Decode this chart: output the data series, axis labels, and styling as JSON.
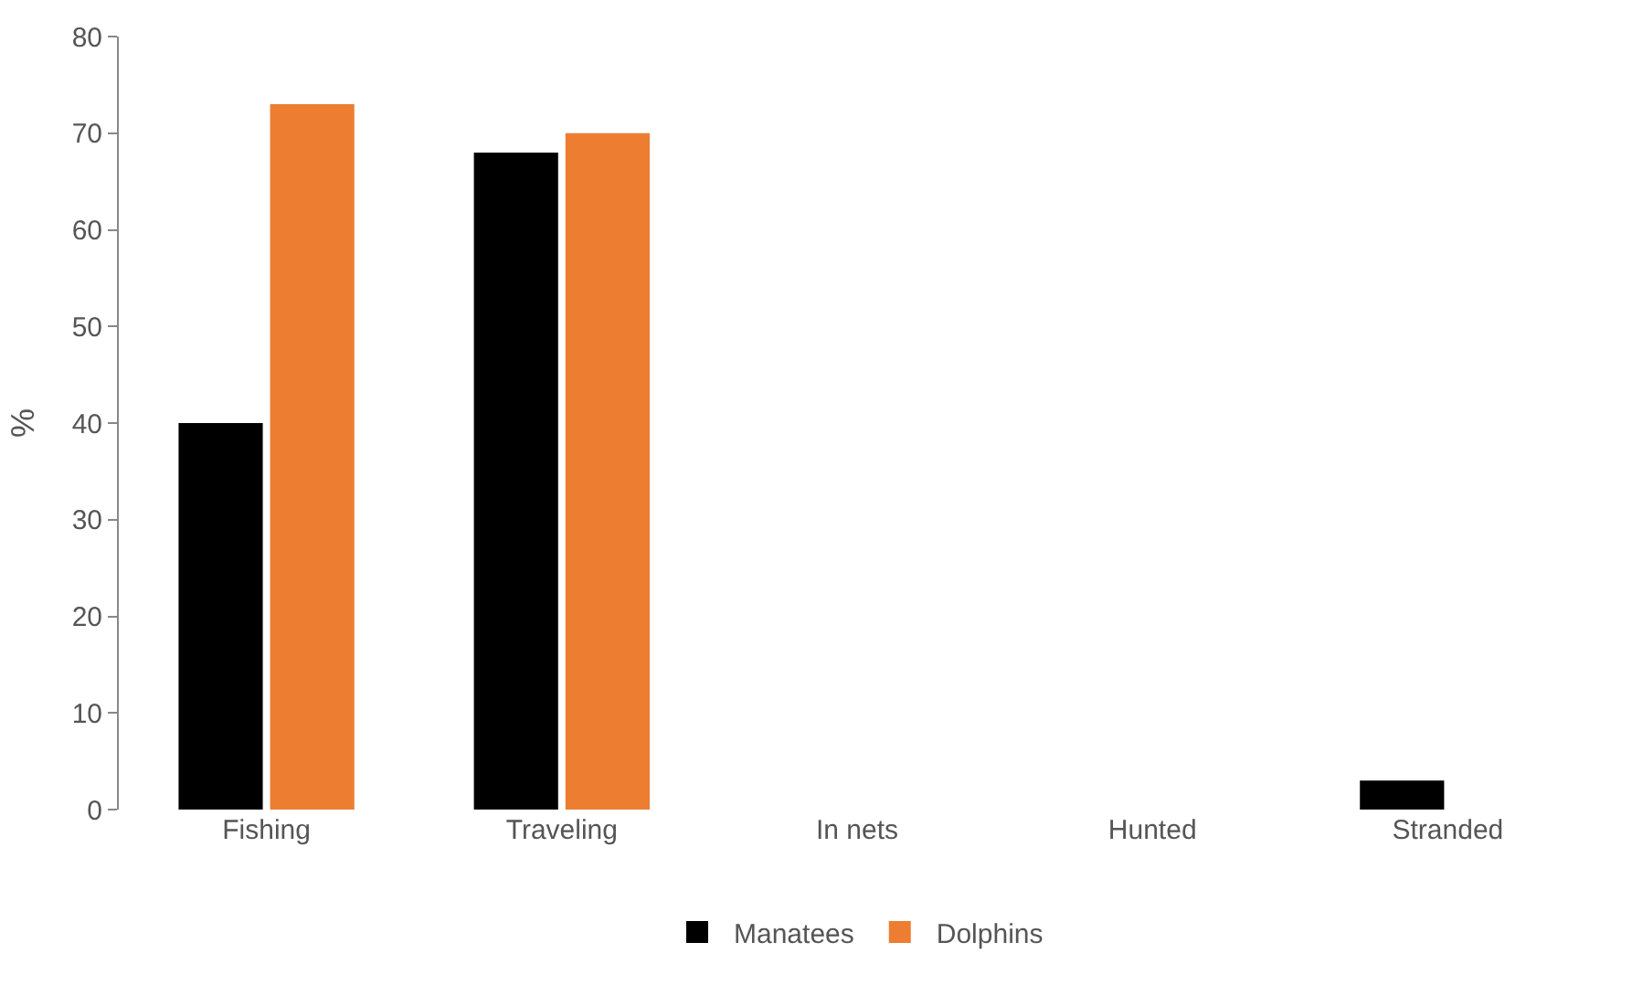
{
  "chart_data": {
    "type": "bar",
    "ylabel": "%",
    "categories": [
      "Fishing",
      "Traveling",
      "In nets",
      "Hunted",
      "Stranded"
    ],
    "series": [
      {
        "name": "Manatees",
        "color": "#000000",
        "values": [
          40,
          68,
          0,
          0,
          3
        ]
      },
      {
        "name": "Dolphins",
        "color": "#ed7d31",
        "values": [
          73,
          70,
          0,
          0,
          0
        ]
      }
    ],
    "ylim": [
      0,
      80
    ],
    "yticks": [
      0,
      10,
      20,
      30,
      40,
      50,
      60,
      70,
      80
    ],
    "legend": "bottom"
  }
}
